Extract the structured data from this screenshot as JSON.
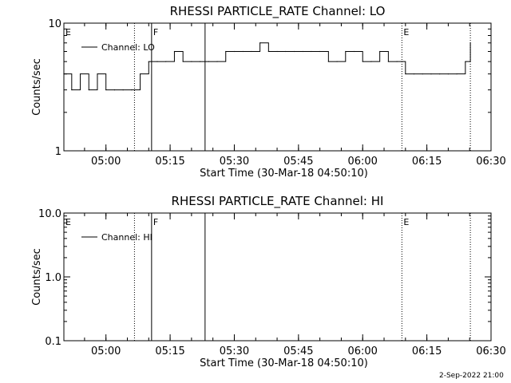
{
  "footer_timestamp": "2-Sep-2022 21:00",
  "chart_data": [
    {
      "type": "line",
      "title": "RHESSI PARTICLE_RATE Channel: LO",
      "xlabel": "Start Time (30-Mar-18 04:50:10)",
      "ylabel": "Counts/sec",
      "yscale": "log",
      "ylim": [
        1,
        10
      ],
      "xlim": [
        "04:50:10",
        "06:30:00"
      ],
      "x_ticks": [
        "05:00",
        "05:15",
        "05:30",
        "05:45",
        "06:00",
        "06:15",
        "06:30"
      ],
      "y_ticks": [
        "1",
        "10"
      ],
      "legend": {
        "position": "top-left",
        "entries": [
          "Channel: LO"
        ]
      },
      "markers": [
        {
          "label": "E",
          "time": "04:50:10",
          "style": "dotted"
        },
        {
          "label": "",
          "time": "05:06:40",
          "style": "dotted"
        },
        {
          "label": "F",
          "time": "05:10:40",
          "style": "solid"
        },
        {
          "label": "",
          "time": "05:23:10",
          "style": "solid"
        },
        {
          "label": "E",
          "time": "06:09:10",
          "style": "dotted"
        },
        {
          "label": "",
          "time": "06:25:10",
          "style": "dotted"
        }
      ],
      "series": [
        {
          "x": [
            "04:50:10",
            "04:52:00",
            "04:54:00",
            "04:56:00",
            "04:58:00",
            "05:00:00",
            "05:02:00",
            "05:04:00",
            "05:06:00",
            "05:08:00",
            "05:10:00",
            "05:12:00",
            "05:14:00",
            "05:16:00",
            "05:18:00",
            "05:20:00",
            "05:22:00",
            "05:24:00",
            "05:26:00",
            "05:28:00",
            "05:30:00",
            "05:32:00",
            "05:34:00",
            "05:36:00",
            "05:38:00",
            "05:40:00",
            "05:42:00",
            "05:44:00",
            "05:46:00",
            "05:48:00",
            "05:50:00",
            "05:52:00",
            "05:54:00",
            "05:56:00",
            "05:58:00",
            "06:00:00",
            "06:02:00",
            "06:04:00",
            "06:06:00",
            "06:08:00",
            "06:10:00",
            "06:12:00",
            "06:14:00",
            "06:16:00",
            "06:18:00",
            "06:20:00",
            "06:22:00",
            "06:24:00",
            "06:25:10"
          ],
          "values": [
            4,
            3,
            4,
            3,
            4,
            3,
            3,
            3,
            3,
            4,
            5,
            5,
            5,
            6,
            5,
            5,
            5,
            5,
            5,
            6,
            6,
            6,
            6,
            7,
            6,
            6,
            6,
            6,
            6,
            6,
            6,
            5,
            5,
            6,
            6,
            5,
            5,
            6,
            5,
            5,
            4,
            4,
            4,
            4,
            4,
            4,
            4,
            5,
            7
          ]
        }
      ]
    },
    {
      "type": "line",
      "title": "RHESSI PARTICLE_RATE Channel: HI",
      "xlabel": "Start Time (30-Mar-18 04:50:10)",
      "ylabel": "Counts/sec",
      "yscale": "log",
      "ylim": [
        0.1,
        10
      ],
      "xlim": [
        "04:50:10",
        "06:30:00"
      ],
      "x_ticks": [
        "05:00",
        "05:15",
        "05:30",
        "05:45",
        "06:00",
        "06:15",
        "06:30"
      ],
      "y_ticks": [
        "0.1",
        "1.0",
        "10.0"
      ],
      "legend": {
        "position": "top-left",
        "entries": [
          "Channel: HI"
        ]
      },
      "markers": [
        {
          "label": "E",
          "time": "04:50:10",
          "style": "dotted"
        },
        {
          "label": "",
          "time": "05:06:40",
          "style": "dotted"
        },
        {
          "label": "F",
          "time": "05:10:40",
          "style": "solid"
        },
        {
          "label": "",
          "time": "05:23:10",
          "style": "solid"
        },
        {
          "label": "E",
          "time": "06:09:10",
          "style": "dotted"
        },
        {
          "label": "",
          "time": "06:25:10",
          "style": "dotted"
        }
      ],
      "series": [
        {
          "x": [],
          "values": []
        }
      ]
    }
  ]
}
